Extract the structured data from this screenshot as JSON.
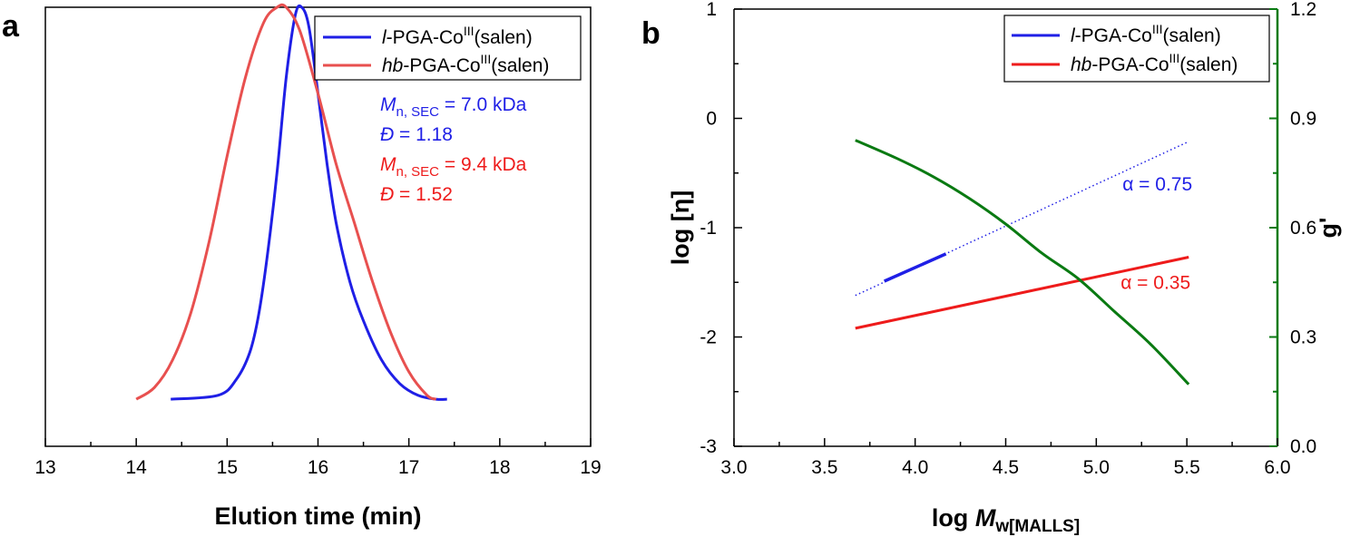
{
  "chart_data": [
    {
      "panel": "a",
      "type": "line",
      "title": "",
      "xlabel": "Elution time (min)",
      "ylabel": "",
      "xlim": [
        13,
        19
      ],
      "ylim": [
        -0.12,
        1.0
      ],
      "xticks": [
        "13",
        "14",
        "15",
        "16",
        "17",
        "18",
        "19"
      ],
      "legend_position": "top-right",
      "series": [
        {
          "name": "l-PGA-CoIII(salen)",
          "legend_parts": [
            "l",
            "-PGA-Co",
            "III",
            "(salen)"
          ],
          "color": "#1f1fe6",
          "x": [
            14.38,
            14.9,
            15.1,
            15.25,
            15.35,
            15.45,
            15.55,
            15.65,
            15.75,
            15.82,
            15.9,
            16.0,
            16.1,
            16.2,
            16.35,
            16.5,
            16.7,
            16.9,
            17.1,
            17.3,
            17.42
          ],
          "y": [
            0.0,
            0.01,
            0.05,
            0.12,
            0.22,
            0.38,
            0.58,
            0.82,
            0.98,
            1.0,
            0.95,
            0.78,
            0.6,
            0.45,
            0.3,
            0.2,
            0.1,
            0.04,
            0.01,
            0.0,
            0.0
          ]
        },
        {
          "name": "hb-PGA-CoIII(salen)",
          "legend_parts": [
            "hb",
            "-PGA-Co",
            "III",
            "(salen)"
          ],
          "color": "#e8504f",
          "x": [
            14.0,
            14.2,
            14.4,
            14.6,
            14.8,
            15.0,
            15.2,
            15.4,
            15.55,
            15.65,
            15.8,
            16.0,
            16.2,
            16.4,
            16.6,
            16.8,
            17.0,
            17.2,
            17.3
          ],
          "y": [
            0.0,
            0.03,
            0.1,
            0.22,
            0.4,
            0.62,
            0.82,
            0.96,
            1.0,
            1.0,
            0.94,
            0.78,
            0.6,
            0.45,
            0.3,
            0.17,
            0.07,
            0.01,
            0.0
          ]
        }
      ],
      "annotations": [
        {
          "color": "#1f1fe6",
          "parts": [
            "M",
            "n, SEC",
            " = 7.0 kDa"
          ]
        },
        {
          "color": "#1f1fe6",
          "parts": [
            "Đ",
            " = 1.18"
          ]
        },
        {
          "color": "#ee1b1b",
          "parts": [
            "M",
            "n, SEC",
            " = 9.4 kDa"
          ]
        },
        {
          "color": "#ee1b1b",
          "parts": [
            "Đ",
            " = 1.52"
          ]
        }
      ]
    },
    {
      "panel": "b",
      "type": "line",
      "title": "",
      "xlabel": "log Mw[MALLS]",
      "xlabel_parts": [
        "log ",
        "M",
        "w[MALLS]"
      ],
      "ylabel": "log [η]",
      "y2label": "g'",
      "xlim": [
        3.0,
        6.0
      ],
      "ylim": [
        -3,
        1
      ],
      "y2lim": [
        0.0,
        1.2
      ],
      "xticks": [
        "3.0",
        "3.5",
        "4.0",
        "4.5",
        "5.0",
        "5.5",
        "6.0"
      ],
      "yticks": [
        "-3",
        "-2",
        "-1",
        "0",
        "1"
      ],
      "y2ticks": [
        "0.0",
        "0.3",
        "0.6",
        "0.9",
        "1.2"
      ],
      "legend_position": "top-right",
      "series": [
        {
          "name": "l-PGA-CoIII(salen)",
          "legend_parts": [
            "l",
            "-PGA-Co",
            "III",
            "(salen)"
          ],
          "color": "#1f1fe6",
          "axis": "left",
          "x": [
            3.83,
            4.17
          ],
          "y": [
            -1.49,
            -1.24
          ]
        },
        {
          "name": "l-PGA-CoIII(salen) fit",
          "color": "#1f1fe6",
          "axis": "left",
          "style": "dotted",
          "x": [
            3.67,
            5.5
          ],
          "y": [
            -1.62,
            -0.22
          ]
        },
        {
          "name": "hb-PGA-CoIII(salen)",
          "legend_parts": [
            "hb",
            "-PGA-Co",
            "III",
            "(salen)"
          ],
          "color": "#ee1b1b",
          "axis": "left",
          "x": [
            3.67,
            5.51
          ],
          "y": [
            -1.92,
            -1.27
          ]
        },
        {
          "name": "g'",
          "color": "#0a7a12",
          "axis": "right",
          "x": [
            3.67,
            3.9,
            4.1,
            4.3,
            4.5,
            4.7,
            4.9,
            5.1,
            5.3,
            5.51
          ],
          "y": [
            0.84,
            0.79,
            0.74,
            0.68,
            0.61,
            0.53,
            0.46,
            0.37,
            0.28,
            0.17
          ]
        }
      ],
      "annotations": [
        {
          "text": "α = 0.75",
          "color": "#1f1fe6",
          "x": 5.53,
          "y": -0.6
        },
        {
          "text": "α = 0.35",
          "color": "#ee1b1b",
          "x": 5.52,
          "y": -1.5
        }
      ]
    }
  ]
}
